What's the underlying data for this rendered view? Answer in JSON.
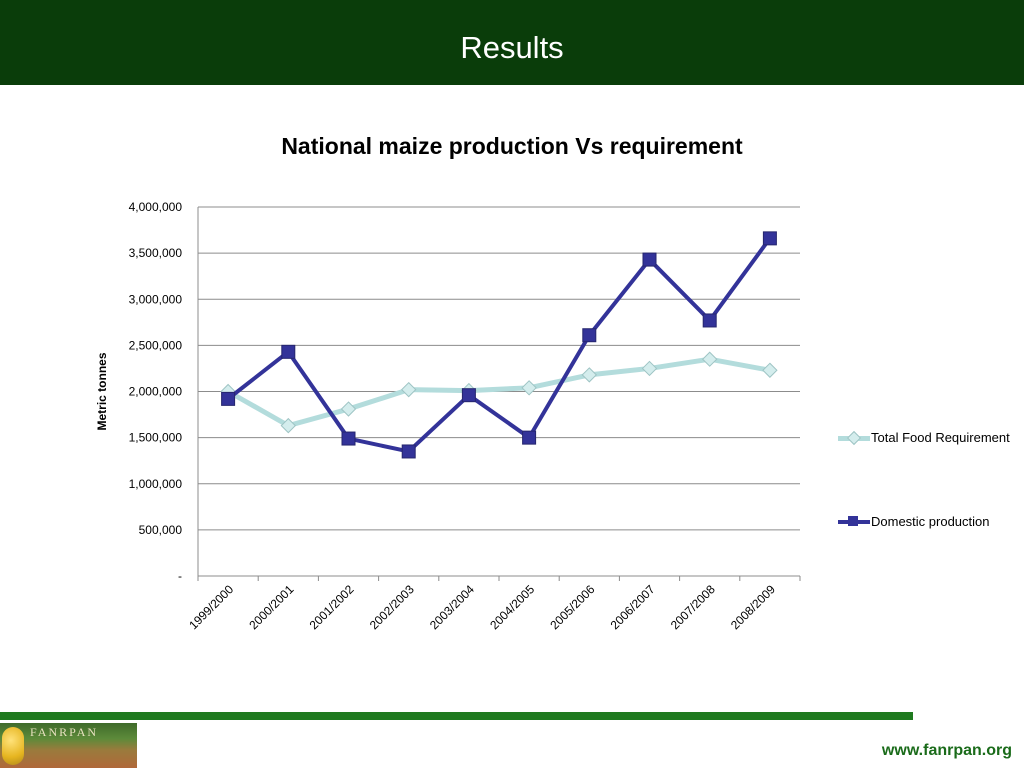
{
  "header": {
    "title": "Results"
  },
  "footer": {
    "url": "www.fanrpan.org",
    "logo_text": "FANRPAN"
  },
  "chart_data": {
    "type": "line",
    "title": "National maize production Vs requirement",
    "xlabel": "",
    "ylabel": "Metric tonnes",
    "categories": [
      "1999/2000",
      "2000/2001",
      "2001/2002",
      "2002/2003",
      "2003/2004",
      "2004/2005",
      "2005/2006",
      "2006/2007",
      "2007/2008",
      "2008/2009"
    ],
    "ylim": [
      0,
      4000000
    ],
    "yticks": [
      0,
      500000,
      1000000,
      1500000,
      2000000,
      2500000,
      3000000,
      3500000,
      4000000
    ],
    "ytick_labels": [
      "-",
      "500,000",
      "1,000,000",
      "1,500,000",
      "2,000,000",
      "2,500,000",
      "3,000,000",
      "3,500,000",
      "4,000,000"
    ],
    "grid": true,
    "legend_position": "right",
    "series": [
      {
        "name": "Total Food Requirement",
        "color": "#b3dcdc",
        "marker": "diamond",
        "values": [
          2000000,
          1630000,
          1810000,
          2020000,
          2010000,
          2040000,
          2180000,
          2250000,
          2350000,
          2230000
        ]
      },
      {
        "name": "Domestic production",
        "color": "#333399",
        "marker": "square",
        "values": [
          1920000,
          2430000,
          1490000,
          1350000,
          1960000,
          1500000,
          2610000,
          3430000,
          2770000,
          3660000
        ]
      }
    ]
  }
}
